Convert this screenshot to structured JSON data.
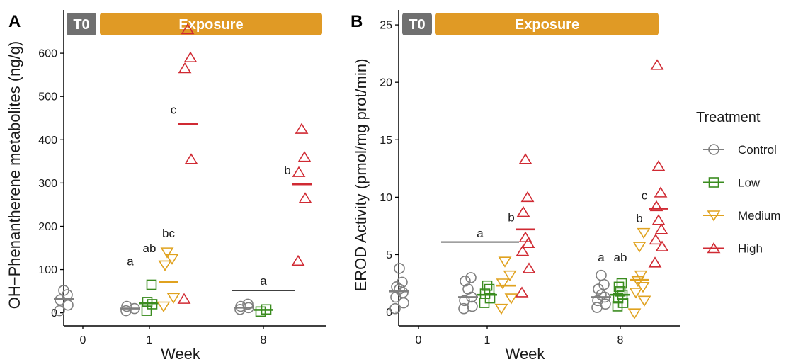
{
  "colors": {
    "Control": "#7f7f7f",
    "Low": "#3a8c1f",
    "Medium": "#e0a21f",
    "High": "#d02a33",
    "baseline_bar": "#707070",
    "exposure_bar": "#e09a25"
  },
  "legend": {
    "title": "Treatment",
    "items": [
      {
        "name": "Control",
        "marker": "circle"
      },
      {
        "name": "Low",
        "marker": "square"
      },
      {
        "name": "Medium",
        "marker": "triangle-down"
      },
      {
        "name": "High",
        "marker": "triangle-up"
      }
    ]
  },
  "phases": {
    "baseline": "T0",
    "exposure": "Exposure"
  },
  "chart_data": [
    {
      "panel": "A",
      "type": "scatter",
      "xlabel": "Week",
      "ylabel": "OH−Phenantherene metabolites (ng/g)",
      "ylim": [
        -30,
        700
      ],
      "yticks": [
        0,
        100,
        200,
        300,
        400,
        500,
        600
      ],
      "xticks": [
        "0",
        "1",
        "8"
      ],
      "groups": [
        {
          "week": "0",
          "treatment": "Control",
          "values": [
            5,
            18,
            30,
            42,
            52
          ],
          "mean": 32
        },
        {
          "week": "1",
          "treatment": "Control",
          "values": [
            5,
            10,
            15
          ],
          "mean": 10
        },
        {
          "week": "1",
          "treatment": "Low",
          "values": [
            5,
            20,
            25,
            65
          ],
          "mean": 22
        },
        {
          "week": "1",
          "treatment": "Medium",
          "values": [
            15,
            35,
            110,
            125,
            140
          ],
          "mean": 72
        },
        {
          "week": "1",
          "treatment": "High",
          "values": [
            32,
            355,
            565,
            590,
            655
          ],
          "mean": 436
        },
        {
          "week": "8",
          "treatment": "Control",
          "values": [
            8,
            12,
            15,
            20
          ],
          "mean": 12
        },
        {
          "week": "8",
          "treatment": "Low",
          "values": [
            3,
            8
          ],
          "mean": 7
        },
        {
          "week": "8",
          "treatment": "High",
          "values": [
            120,
            265,
            325,
            360,
            425
          ],
          "mean": 297
        }
      ],
      "annotations": [
        {
          "text": "a",
          "week": "1",
          "treatment": "Control",
          "y": 110
        },
        {
          "text": "ab",
          "week": "1",
          "treatment": "Low",
          "y": 140
        },
        {
          "text": "bc",
          "week": "1",
          "treatment": "Medium",
          "y": 175
        },
        {
          "text": "c",
          "week": "1",
          "treatment": "High",
          "y": 460
        },
        {
          "text": "b",
          "week": "8",
          "treatment": "High",
          "y": 320
        },
        {
          "text": "a",
          "week": "8",
          "treatment": "bracket",
          "y": 65
        }
      ],
      "brackets": [
        {
          "y": 52,
          "from": {
            "week": "8",
            "treatment": "Control"
          },
          "to": {
            "week": "8",
            "treatment": "Medium"
          }
        }
      ]
    },
    {
      "panel": "B",
      "type": "scatter",
      "xlabel": "Week",
      "ylabel": "EROD Activity (pmol/mg prot/min)",
      "ylim": [
        -1.2,
        26.3
      ],
      "yticks": [
        0,
        5,
        10,
        15,
        20,
        25
      ],
      "xticks": [
        "0",
        "1",
        "8"
      ],
      "groups": [
        {
          "week": "0",
          "treatment": "Control",
          "values": [
            0.3,
            0.8,
            1.3,
            1.7,
            2.0,
            2.2,
            2.6,
            3.8
          ],
          "mean": 1.8
        },
        {
          "week": "1",
          "treatment": "Control",
          "values": [
            0.3,
            0.5,
            1.0,
            1.3,
            2.0,
            2.7,
            3.0
          ],
          "mean": 1.3
        },
        {
          "week": "1",
          "treatment": "Low",
          "values": [
            0.8,
            1.2,
            1.6,
            2.0,
            2.3
          ],
          "mean": 1.5
        },
        {
          "week": "1",
          "treatment": "Medium",
          "values": [
            0.3,
            1.2,
            2.5,
            3.2,
            4.4
          ],
          "mean": 2.3
        },
        {
          "week": "1",
          "treatment": "High",
          "values": [
            1.7,
            3.8,
            5.3,
            6.0,
            6.5,
            8.7,
            10.0,
            13.3
          ],
          "mean": 7.2
        },
        {
          "week": "8",
          "treatment": "Control",
          "values": [
            0.4,
            0.7,
            1.0,
            1.3,
            1.5,
            2.0,
            2.4,
            3.2
          ],
          "mean": 1.3
        },
        {
          "week": "8",
          "treatment": "Low",
          "values": [
            0.5,
            0.8,
            1.2,
            1.5,
            1.8,
            2.2,
            2.5
          ],
          "mean": 1.5
        },
        {
          "week": "8",
          "treatment": "Medium",
          "values": [
            -0.1,
            1.0,
            1.7,
            2.2,
            2.7,
            3.2,
            5.7,
            6.9
          ],
          "mean": 2.8
        },
        {
          "week": "8",
          "treatment": "High",
          "values": [
            4.3,
            5.7,
            6.3,
            7.2,
            8.0,
            9.2,
            10.4,
            12.7,
            21.5
          ],
          "mean": 9.0
        }
      ],
      "annotations": [
        {
          "text": "a",
          "week": "1",
          "treatment": "bracket",
          "y": 6.5
        },
        {
          "text": "b",
          "week": "1",
          "treatment": "High",
          "y": 7.9
        },
        {
          "text": "a",
          "week": "8",
          "treatment": "Control",
          "y": 4.4
        },
        {
          "text": "ab",
          "week": "8",
          "treatment": "Low",
          "y": 4.4
        },
        {
          "text": "b",
          "week": "8",
          "treatment": "Medium",
          "y": 7.8
        },
        {
          "text": "c",
          "week": "8",
          "treatment": "High",
          "y": 9.8
        }
      ],
      "brackets": [
        {
          "y": 6.1,
          "from": {
            "week": "1",
            "treatment": "Control",
            "pad": -1
          },
          "to": {
            "week": "1",
            "treatment": "Medium"
          }
        }
      ]
    }
  ]
}
